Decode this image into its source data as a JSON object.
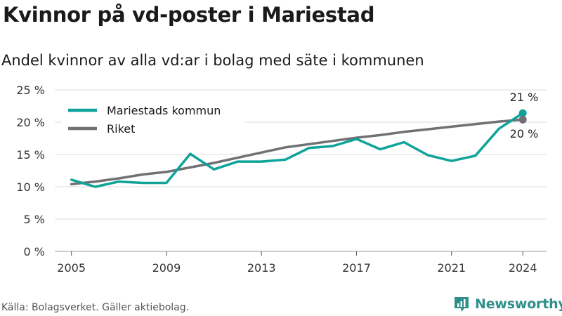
{
  "header": {
    "title": "Kvinnor på vd-poster i Mariestad",
    "subtitle": "Andel kvinnor av alla vd:ar i bolag med säte i kommunen"
  },
  "footer": {
    "source": "Källa: Bolagsverket. Gäller aktiebolag.",
    "brand": "Newsworthy"
  },
  "colors": {
    "mariestad": "#0fa39a",
    "riket": "#707075",
    "grid": "#dddddd",
    "brand": "#2f8f8a"
  },
  "chart_data": {
    "type": "line",
    "title": "Kvinnor på vd-poster i Mariestad",
    "subtitle": "Andel kvinnor av alla vd:ar i bolag med säte i kommunen",
    "x": [
      2005,
      2006,
      2007,
      2008,
      2009,
      2010,
      2011,
      2012,
      2013,
      2014,
      2015,
      2016,
      2017,
      2018,
      2019,
      2020,
      2021,
      2022,
      2023,
      2024
    ],
    "x_ticks": [
      2005,
      2009,
      2013,
      2017,
      2021,
      2024
    ],
    "ylim": [
      0,
      25
    ],
    "y_ticks": [
      0,
      5,
      10,
      15,
      20,
      25
    ],
    "y_tick_labels": [
      "0 %",
      "5 %",
      "10 %",
      "15 %",
      "20 %",
      "25 %"
    ],
    "grid": true,
    "legend_position": "top-left",
    "series": [
      {
        "name": "Mariestads kommun",
        "color": "#0fa39a",
        "values": [
          11.1,
          10.0,
          10.8,
          10.6,
          10.6,
          15.1,
          12.7,
          13.9,
          13.9,
          14.2,
          16.0,
          16.3,
          17.4,
          15.8,
          16.9,
          14.9,
          14.0,
          14.8,
          19.0,
          21.4
        ],
        "end_label": "21 %"
      },
      {
        "name": "Riket",
        "color": "#707075",
        "values": [
          10.4,
          10.8,
          11.3,
          11.9,
          12.3,
          13.0,
          13.7,
          14.5,
          15.3,
          16.1,
          16.6,
          17.1,
          17.6,
          18.0,
          18.5,
          18.9,
          19.3,
          19.7,
          20.1,
          20.4
        ],
        "end_label": "20 %"
      }
    ]
  }
}
